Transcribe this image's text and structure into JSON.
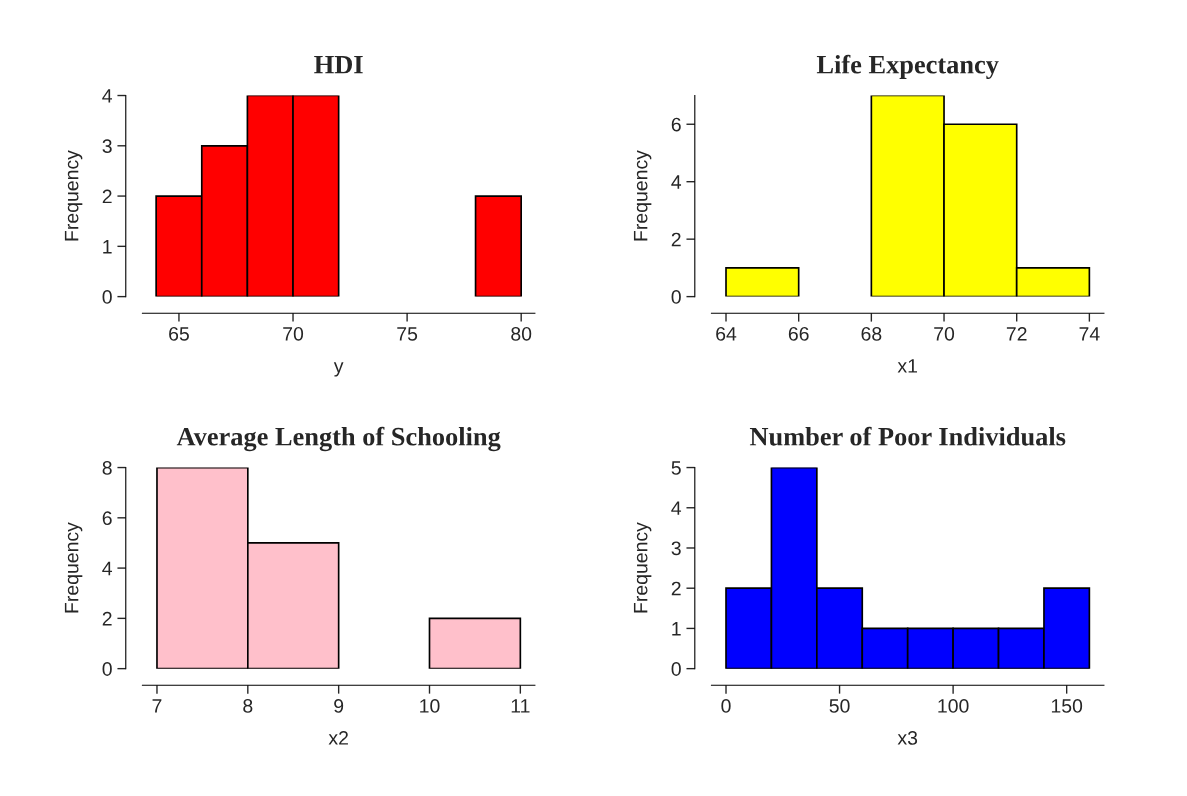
{
  "chart_data": [
    {
      "type": "histogram",
      "title": "HDI",
      "xlabel": "y",
      "ylabel": "Frequency",
      "color": "#ff0000",
      "bins": [
        64,
        66,
        68,
        70,
        72,
        74,
        76,
        78,
        80
      ],
      "values": [
        2,
        3,
        4,
        4,
        0,
        0,
        0,
        2
      ],
      "xlim": [
        63.4,
        80.6
      ],
      "ylim": [
        0,
        4
      ],
      "xticks": [
        65,
        70,
        75,
        80
      ],
      "yticks": [
        0,
        1,
        2,
        3,
        4
      ]
    },
    {
      "type": "histogram",
      "title": "Life Expectancy",
      "xlabel": "x1",
      "ylabel": "Frequency",
      "color": "#ffff00",
      "bins": [
        64,
        66,
        68,
        70,
        72,
        74
      ],
      "values": [
        1,
        0,
        7,
        6,
        1
      ],
      "xlim": [
        63.6,
        74.4
      ],
      "ylim": [
        0,
        7
      ],
      "xticks": [
        64,
        66,
        68,
        70,
        72,
        74
      ],
      "yticks": [
        0,
        2,
        4,
        6
      ]
    },
    {
      "type": "histogram",
      "title": "Average Length of Schooling",
      "xlabel": "x2",
      "ylabel": "Frequency",
      "color": "#ffc0cb",
      "bins": [
        7,
        8,
        9,
        10,
        11
      ],
      "values": [
        8,
        5,
        0,
        2
      ],
      "xlim": [
        6.84,
        11.16
      ],
      "ylim": [
        0,
        8
      ],
      "xticks": [
        7,
        8,
        9,
        10,
        11
      ],
      "yticks": [
        0,
        2,
        4,
        6,
        8
      ]
    },
    {
      "type": "histogram",
      "title": "Number of Poor Individuals",
      "xlabel": "x3",
      "ylabel": "Frequency",
      "color": "#0000ff",
      "bins": [
        0,
        20,
        40,
        60,
        80,
        100,
        120,
        140,
        160
      ],
      "values": [
        2,
        5,
        2,
        1,
        1,
        1,
        1,
        2
      ],
      "xlim": [
        -6.4,
        166.4
      ],
      "ylim": [
        0,
        5
      ],
      "xticks": [
        0,
        50,
        100,
        150
      ],
      "yticks": [
        0,
        1,
        2,
        3,
        4,
        5
      ]
    }
  ]
}
